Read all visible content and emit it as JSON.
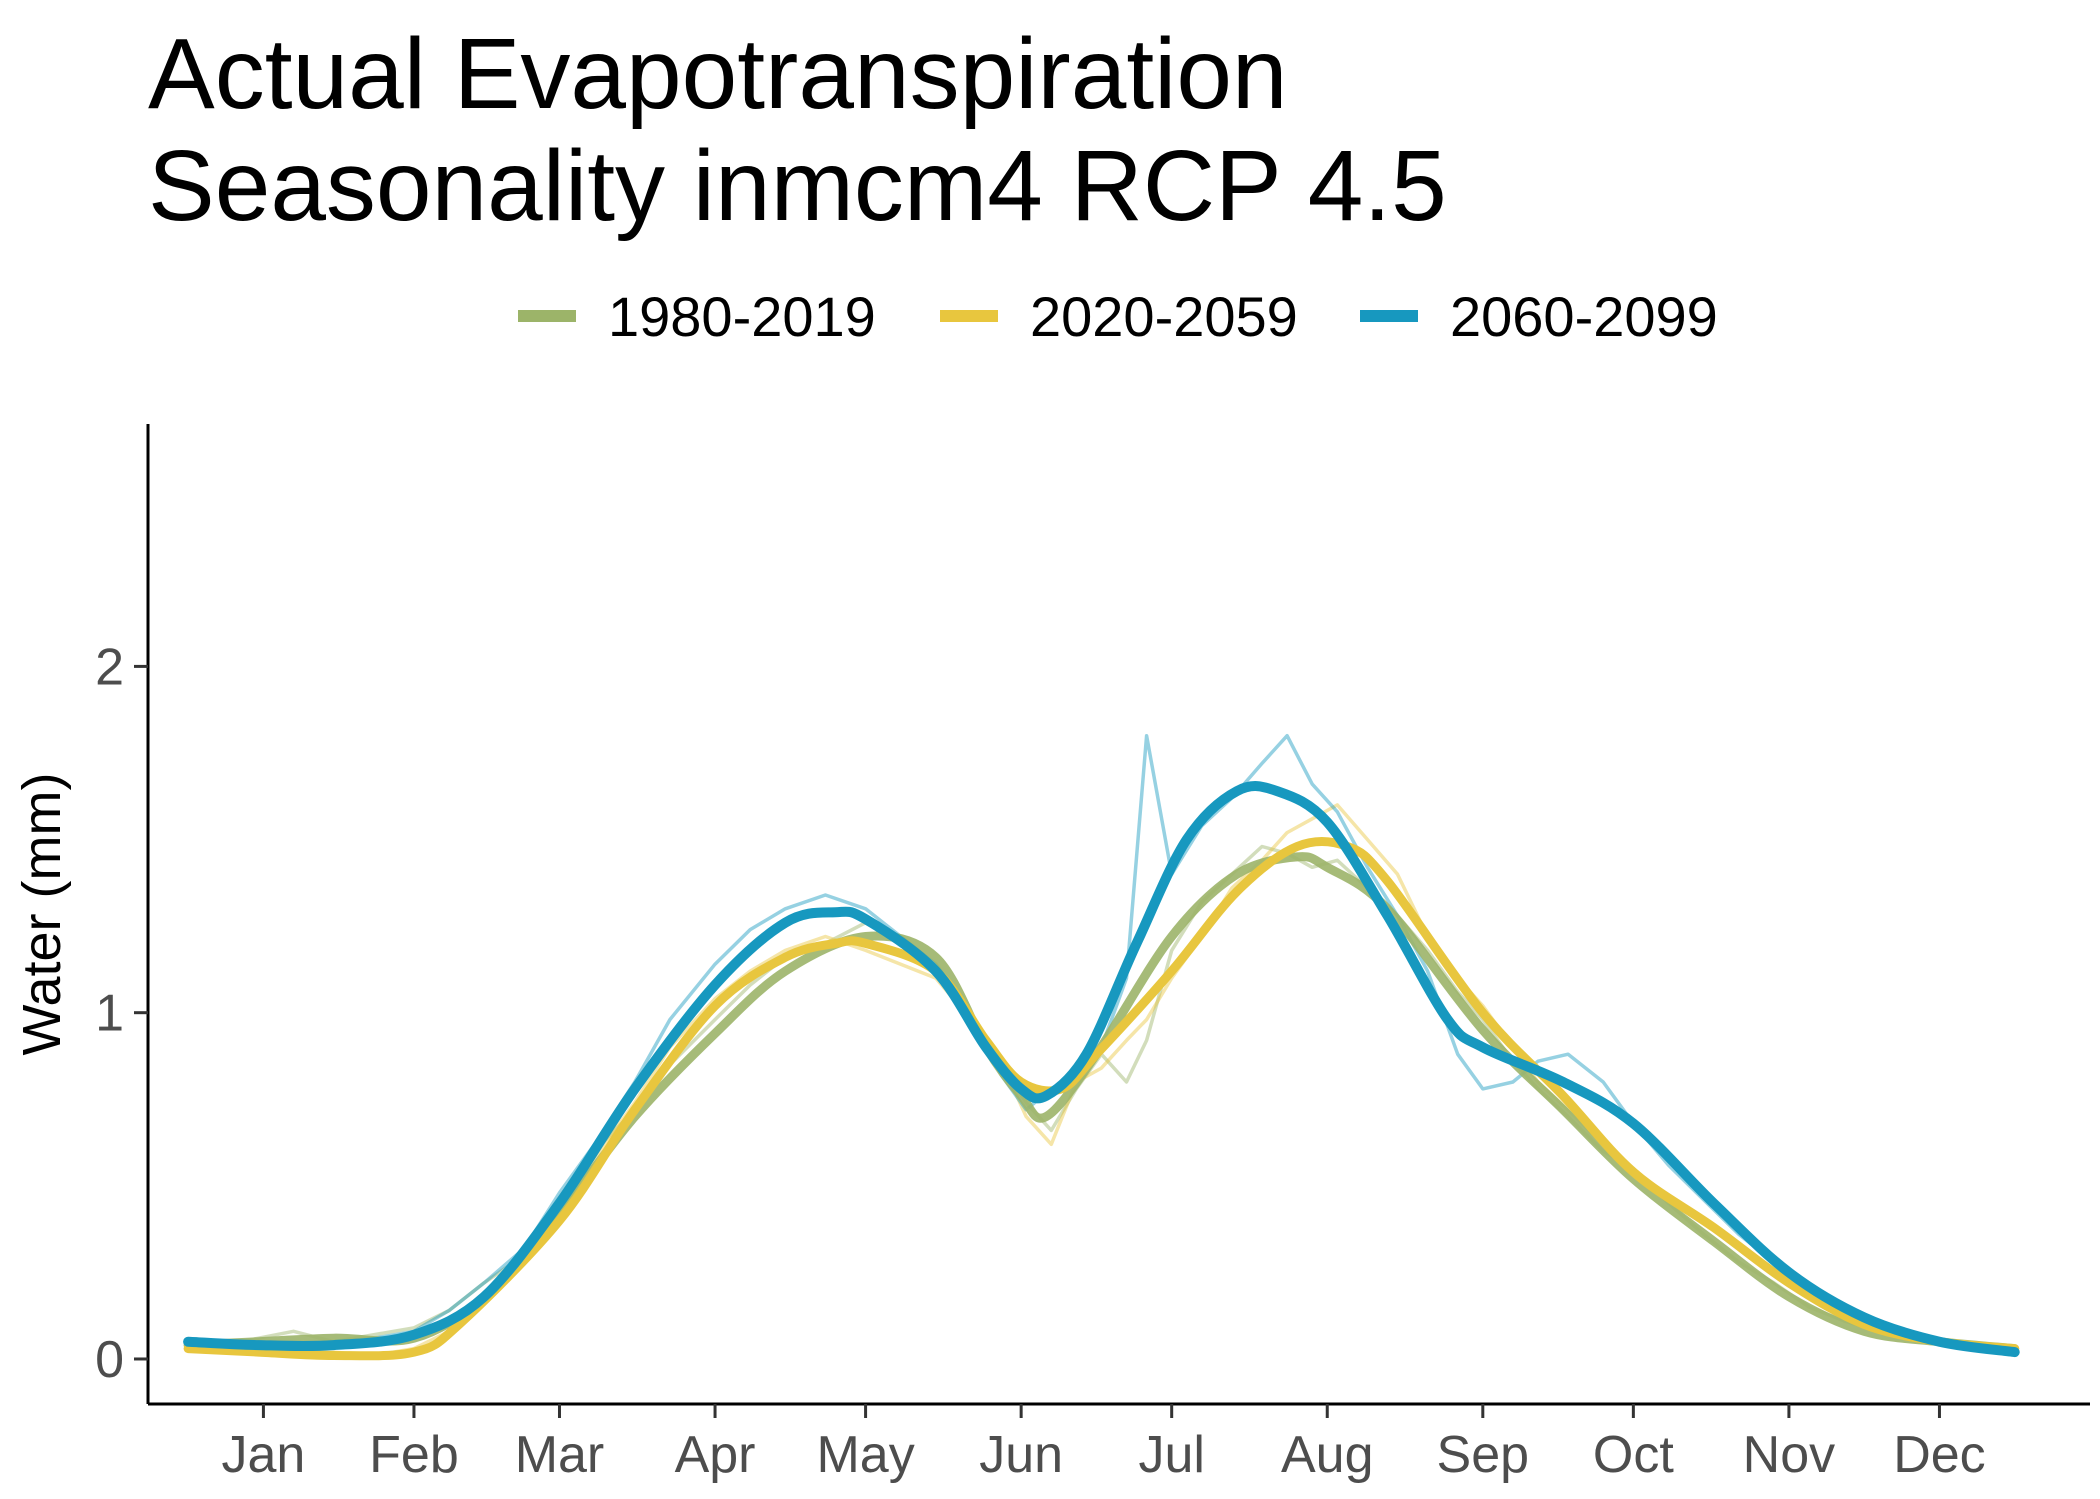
{
  "chart_data": {
    "type": "line",
    "title_lines": [
      "Actual Evapotranspiration",
      "Seasonality inmcm4 RCP 4.5"
    ],
    "xlabel": "",
    "ylabel": "Water (mm)",
    "x_unit": "day of year",
    "xlim": [
      1,
      365
    ],
    "ylim": [
      -0.13,
      2.7
    ],
    "y_ticks": [
      0,
      1,
      2
    ],
    "x_ticks": [
      {
        "label": "Jan",
        "day": 16
      },
      {
        "label": "Feb",
        "day": 46
      },
      {
        "label": "Mar",
        "day": 75
      },
      {
        "label": "Apr",
        "day": 106
      },
      {
        "label": "May",
        "day": 136
      },
      {
        "label": "Jun",
        "day": 167
      },
      {
        "label": "Jul",
        "day": 197
      },
      {
        "label": "Aug",
        "day": 228
      },
      {
        "label": "Sep",
        "day": 259
      },
      {
        "label": "Oct",
        "day": 289
      },
      {
        "label": "Nov",
        "day": 320
      },
      {
        "label": "Dec",
        "day": 350
      }
    ],
    "grid": false,
    "legend_position": "top",
    "series": [
      {
        "name": "1980-2019",
        "color": "#9CB469",
        "smooth": [
          [
            1,
            0.04
          ],
          [
            15,
            0.05
          ],
          [
            30,
            0.06
          ],
          [
            46,
            0.06
          ],
          [
            60,
            0.18
          ],
          [
            75,
            0.42
          ],
          [
            90,
            0.7
          ],
          [
            106,
            0.94
          ],
          [
            120,
            1.12
          ],
          [
            136,
            1.22
          ],
          [
            150,
            1.16
          ],
          [
            160,
            0.9
          ],
          [
            167,
            0.76
          ],
          [
            172,
            0.7
          ],
          [
            182,
            0.88
          ],
          [
            197,
            1.22
          ],
          [
            210,
            1.4
          ],
          [
            222,
            1.45
          ],
          [
            228,
            1.42
          ],
          [
            240,
            1.3
          ],
          [
            259,
            0.95
          ],
          [
            275,
            0.72
          ],
          [
            289,
            0.52
          ],
          [
            305,
            0.34
          ],
          [
            320,
            0.18
          ],
          [
            335,
            0.08
          ],
          [
            350,
            0.05
          ],
          [
            365,
            0.03
          ]
        ],
        "daily": [
          [
            1,
            0.05
          ],
          [
            8,
            0.04
          ],
          [
            15,
            0.06
          ],
          [
            22,
            0.08
          ],
          [
            30,
            0.05
          ],
          [
            38,
            0.07
          ],
          [
            46,
            0.09
          ],
          [
            53,
            0.14
          ],
          [
            60,
            0.22
          ],
          [
            68,
            0.3
          ],
          [
            75,
            0.46
          ],
          [
            82,
            0.6
          ],
          [
            90,
            0.72
          ],
          [
            97,
            0.85
          ],
          [
            106,
            0.98
          ],
          [
            113,
            1.08
          ],
          [
            120,
            1.16
          ],
          [
            128,
            1.2
          ],
          [
            136,
            1.26
          ],
          [
            143,
            1.22
          ],
          [
            150,
            1.14
          ],
          [
            157,
            1.0
          ],
          [
            163,
            0.85
          ],
          [
            168,
            0.74
          ],
          [
            173,
            0.66
          ],
          [
            178,
            0.78
          ],
          [
            183,
            0.88
          ],
          [
            188,
            0.8
          ],
          [
            192,
            0.92
          ],
          [
            197,
            1.18
          ],
          [
            203,
            1.32
          ],
          [
            209,
            1.4
          ],
          [
            215,
            1.48
          ],
          [
            220,
            1.46
          ],
          [
            225,
            1.42
          ],
          [
            230,
            1.44
          ],
          [
            236,
            1.36
          ],
          [
            242,
            1.28
          ],
          [
            248,
            1.18
          ],
          [
            254,
            1.06
          ],
          [
            259,
            0.98
          ],
          [
            265,
            0.86
          ],
          [
            270,
            0.78
          ],
          [
            276,
            0.7
          ],
          [
            283,
            0.6
          ],
          [
            289,
            0.55
          ],
          [
            296,
            0.45
          ],
          [
            303,
            0.36
          ],
          [
            310,
            0.28
          ],
          [
            317,
            0.22
          ],
          [
            324,
            0.15
          ],
          [
            331,
            0.11
          ],
          [
            338,
            0.08
          ],
          [
            345,
            0.07
          ],
          [
            352,
            0.05
          ],
          [
            358,
            0.04
          ],
          [
            365,
            0.03
          ]
        ]
      },
      {
        "name": "2020-2059",
        "color": "#E8C63E",
        "smooth": [
          [
            1,
            0.03
          ],
          [
            15,
            0.02
          ],
          [
            30,
            0.01
          ],
          [
            46,
            0.02
          ],
          [
            55,
            0.1
          ],
          [
            75,
            0.4
          ],
          [
            90,
            0.72
          ],
          [
            106,
            1.02
          ],
          [
            120,
            1.16
          ],
          [
            130,
            1.2
          ],
          [
            136,
            1.2
          ],
          [
            150,
            1.12
          ],
          [
            160,
            0.92
          ],
          [
            167,
            0.8
          ],
          [
            175,
            0.78
          ],
          [
            182,
            0.88
          ],
          [
            197,
            1.12
          ],
          [
            210,
            1.35
          ],
          [
            222,
            1.48
          ],
          [
            232,
            1.48
          ],
          [
            240,
            1.38
          ],
          [
            259,
            1.0
          ],
          [
            275,
            0.76
          ],
          [
            289,
            0.54
          ],
          [
            305,
            0.38
          ],
          [
            320,
            0.22
          ],
          [
            335,
            0.1
          ],
          [
            350,
            0.05
          ],
          [
            365,
            0.03
          ]
        ],
        "daily": [
          [
            1,
            0.03
          ],
          [
            8,
            0.02
          ],
          [
            15,
            0.03
          ],
          [
            22,
            0.02
          ],
          [
            30,
            0.02
          ],
          [
            38,
            0.01
          ],
          [
            46,
            0.03
          ],
          [
            53,
            0.08
          ],
          [
            60,
            0.16
          ],
          [
            68,
            0.28
          ],
          [
            75,
            0.42
          ],
          [
            82,
            0.58
          ],
          [
            90,
            0.74
          ],
          [
            97,
            0.9
          ],
          [
            106,
            1.04
          ],
          [
            113,
            1.12
          ],
          [
            120,
            1.18
          ],
          [
            128,
            1.22
          ],
          [
            136,
            1.18
          ],
          [
            143,
            1.14
          ],
          [
            150,
            1.1
          ],
          [
            157,
            0.98
          ],
          [
            163,
            0.86
          ],
          [
            168,
            0.7
          ],
          [
            173,
            0.62
          ],
          [
            178,
            0.8
          ],
          [
            183,
            0.84
          ],
          [
            188,
            0.92
          ],
          [
            192,
            0.98
          ],
          [
            197,
            1.1
          ],
          [
            203,
            1.22
          ],
          [
            209,
            1.36
          ],
          [
            215,
            1.44
          ],
          [
            220,
            1.52
          ],
          [
            225,
            1.56
          ],
          [
            230,
            1.6
          ],
          [
            236,
            1.5
          ],
          [
            242,
            1.4
          ],
          [
            248,
            1.22
          ],
          [
            254,
            1.1
          ],
          [
            259,
            1.02
          ],
          [
            265,
            0.9
          ],
          [
            270,
            0.8
          ],
          [
            276,
            0.72
          ],
          [
            283,
            0.62
          ],
          [
            289,
            0.54
          ],
          [
            296,
            0.46
          ],
          [
            303,
            0.4
          ],
          [
            310,
            0.32
          ],
          [
            317,
            0.25
          ],
          [
            324,
            0.18
          ],
          [
            331,
            0.12
          ],
          [
            338,
            0.09
          ],
          [
            345,
            0.06
          ],
          [
            352,
            0.05
          ],
          [
            358,
            0.04
          ],
          [
            365,
            0.03
          ]
        ]
      },
      {
        "name": "2060-2099",
        "color": "#1798BF",
        "smooth": [
          [
            1,
            0.05
          ],
          [
            15,
            0.04
          ],
          [
            30,
            0.04
          ],
          [
            46,
            0.07
          ],
          [
            60,
            0.18
          ],
          [
            75,
            0.45
          ],
          [
            90,
            0.78
          ],
          [
            106,
            1.08
          ],
          [
            120,
            1.26
          ],
          [
            130,
            1.29
          ],
          [
            136,
            1.27
          ],
          [
            150,
            1.12
          ],
          [
            160,
            0.9
          ],
          [
            167,
            0.78
          ],
          [
            172,
            0.76
          ],
          [
            180,
            0.88
          ],
          [
            190,
            1.2
          ],
          [
            200,
            1.5
          ],
          [
            210,
            1.64
          ],
          [
            218,
            1.64
          ],
          [
            228,
            1.55
          ],
          [
            240,
            1.28
          ],
          [
            252,
            0.98
          ],
          [
            259,
            0.9
          ],
          [
            275,
            0.8
          ],
          [
            289,
            0.68
          ],
          [
            305,
            0.45
          ],
          [
            320,
            0.25
          ],
          [
            335,
            0.12
          ],
          [
            350,
            0.05
          ],
          [
            365,
            0.02
          ]
        ],
        "daily": [
          [
            1,
            0.05
          ],
          [
            8,
            0.04
          ],
          [
            15,
            0.05
          ],
          [
            22,
            0.04
          ],
          [
            30,
            0.05
          ],
          [
            38,
            0.06
          ],
          [
            46,
            0.08
          ],
          [
            53,
            0.14
          ],
          [
            60,
            0.22
          ],
          [
            68,
            0.32
          ],
          [
            75,
            0.48
          ],
          [
            82,
            0.62
          ],
          [
            90,
            0.8
          ],
          [
            97,
            0.98
          ],
          [
            106,
            1.14
          ],
          [
            113,
            1.24
          ],
          [
            120,
            1.3
          ],
          [
            128,
            1.34
          ],
          [
            136,
            1.3
          ],
          [
            143,
            1.22
          ],
          [
            150,
            1.14
          ],
          [
            157,
            1.0
          ],
          [
            163,
            0.82
          ],
          [
            168,
            0.72
          ],
          [
            173,
            0.78
          ],
          [
            178,
            0.8
          ],
          [
            183,
            0.9
          ],
          [
            188,
            1.1
          ],
          [
            192,
            1.8
          ],
          [
            197,
            1.4
          ],
          [
            203,
            1.54
          ],
          [
            209,
            1.62
          ],
          [
            215,
            1.72
          ],
          [
            220,
            1.8
          ],
          [
            225,
            1.66
          ],
          [
            230,
            1.58
          ],
          [
            236,
            1.42
          ],
          [
            242,
            1.28
          ],
          [
            248,
            1.12
          ],
          [
            254,
            0.88
          ],
          [
            259,
            0.78
          ],
          [
            265,
            0.8
          ],
          [
            270,
            0.86
          ],
          [
            276,
            0.88
          ],
          [
            283,
            0.8
          ],
          [
            289,
            0.68
          ],
          [
            296,
            0.56
          ],
          [
            303,
            0.46
          ],
          [
            310,
            0.36
          ],
          [
            317,
            0.28
          ],
          [
            324,
            0.2
          ],
          [
            331,
            0.14
          ],
          [
            338,
            0.1
          ],
          [
            345,
            0.06
          ],
          [
            352,
            0.04
          ],
          [
            358,
            0.03
          ],
          [
            365,
            0.02
          ]
        ]
      }
    ]
  }
}
